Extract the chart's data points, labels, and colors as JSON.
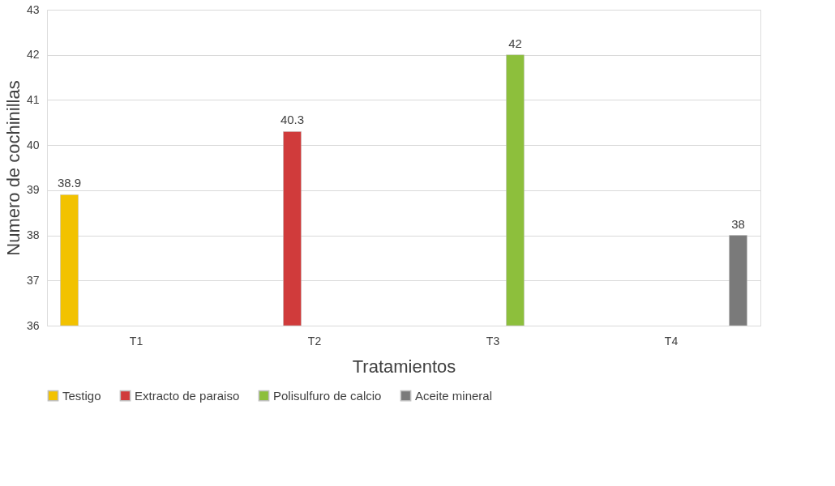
{
  "chart_data": {
    "type": "bar",
    "xlabel": "Tratamientos",
    "ylabel": "Numero de cochinillas",
    "categories": [
      "T1",
      "T2",
      "T3",
      "T4"
    ],
    "series": [
      {
        "name": "Testigo",
        "color": "#f2c200",
        "values": [
          38.9,
          null,
          null,
          null
        ]
      },
      {
        "name": "Extracto de paraiso",
        "color": "#d03b3b",
        "values": [
          null,
          40.3,
          null,
          null
        ]
      },
      {
        "name": "Polisulfuro de calcio",
        "color": "#8dbf3c",
        "values": [
          null,
          null,
          42,
          null
        ]
      },
      {
        "name": "Aceite mineral",
        "color": "#7a7a7a",
        "values": [
          null,
          null,
          null,
          38
        ]
      }
    ],
    "ylim": [
      36,
      43
    ],
    "yticks": [
      36,
      37,
      38,
      39,
      40,
      41,
      42,
      43
    ],
    "grid": "y",
    "legend": "bottom",
    "data_labels": true
  }
}
